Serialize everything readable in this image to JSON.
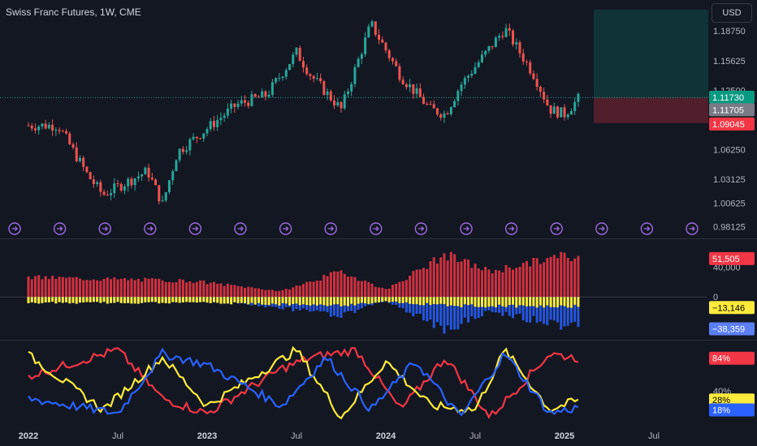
{
  "header": {
    "title": "Swiss Franc Futures, 1W, CME",
    "currency_button": "USD"
  },
  "colors": {
    "background": "#131722",
    "up": "#26a69a",
    "down": "#ef5350",
    "red": "#f23645",
    "yellow": "#ffeb3b",
    "blue": "#2962ff",
    "purple": "#9c6ade",
    "gridline": "#363a45"
  },
  "chart_data": [
    {
      "type": "candlestick",
      "title": "Swiss Franc Futures, 1W, CME",
      "x_tick_labels": [
        "2022",
        "Jul",
        "2023",
        "Jul",
        "2024",
        "Jul",
        "2025",
        "Jul"
      ],
      "y_tick_labels": [
        "1.18750",
        "1.15625",
        "1.12500",
        "1.06250",
        "1.03125",
        "1.00625",
        "0.98125"
      ],
      "ylim": [
        0.975,
        1.215
      ],
      "price_labels": {
        "last": "1.11730",
        "second": "1.11705",
        "stop": "1.09045"
      },
      "position_zone": {
        "entry": 1.1173,
        "target": 1.21,
        "stop": 1.09045
      },
      "key_closes": [
        {
          "date": "2022-01",
          "value": 1.088
        },
        {
          "date": "2022-03",
          "value": 1.088
        },
        {
          "date": "2022-05",
          "value": 1.035
        },
        {
          "date": "2022-06",
          "value": 1.015
        },
        {
          "date": "2022-09",
          "value": 1.04
        },
        {
          "date": "2022-10",
          "value": 1.005
        },
        {
          "date": "2022-11",
          "value": 1.06
        },
        {
          "date": "2023-01",
          "value": 1.085
        },
        {
          "date": "2023-03",
          "value": 1.11
        },
        {
          "date": "2023-05",
          "value": 1.12
        },
        {
          "date": "2023-07",
          "value": 1.165
        },
        {
          "date": "2023-08",
          "value": 1.14
        },
        {
          "date": "2023-10",
          "value": 1.105
        },
        {
          "date": "2023-12",
          "value": 1.195
        },
        {
          "date": "2024-02",
          "value": 1.14
        },
        {
          "date": "2024-04",
          "value": 1.105
        },
        {
          "date": "2024-05",
          "value": 1.1
        },
        {
          "date": "2024-06",
          "value": 1.13
        },
        {
          "date": "2024-08",
          "value": 1.17
        },
        {
          "date": "2024-09",
          "value": 1.19
        },
        {
          "date": "2024-11",
          "value": 1.14
        },
        {
          "date": "2024-12",
          "value": 1.105
        },
        {
          "date": "2025-01",
          "value": 1.1
        },
        {
          "date": "2025-02",
          "value": 1.1173
        }
      ],
      "event_marker_count": 16
    },
    {
      "type": "bar",
      "title": "",
      "y_tick_labels": [
        "40,000",
        "0"
      ],
      "ylim": [
        -52000,
        72000
      ],
      "value_labels": {
        "red": "51,505",
        "yellow": "−13,146",
        "blue": "−38,359"
      },
      "series": [
        {
          "color": "red",
          "key_values": [
            {
              "date": "2022-01",
              "value": 27000
            },
            {
              "date": "2022-12",
              "value": 22000
            },
            {
              "date": "2023-06",
              "value": 8000
            },
            {
              "date": "2023-10",
              "value": 35000
            },
            {
              "date": "2024-01",
              "value": 10000
            },
            {
              "date": "2024-05",
              "value": 58000
            },
            {
              "date": "2024-08",
              "value": 35000
            },
            {
              "date": "2025-01",
              "value": 57000
            },
            {
              "date": "2025-02",
              "value": 51505
            }
          ]
        },
        {
          "color": "yellow",
          "key_values": [
            {
              "date": "2022-01",
              "value": -8000
            },
            {
              "date": "2023-01",
              "value": -8000
            },
            {
              "date": "2023-10",
              "value": -12000
            },
            {
              "date": "2024-01",
              "value": -6000
            },
            {
              "date": "2024-05",
              "value": -12000
            },
            {
              "date": "2025-02",
              "value": -13146
            }
          ]
        },
        {
          "color": "blue",
          "key_values": [
            {
              "date": "2022-01",
              "value": -5000
            },
            {
              "date": "2023-01",
              "value": -3000
            },
            {
              "date": "2023-10",
              "value": -25000
            },
            {
              "date": "2024-01",
              "value": -5000
            },
            {
              "date": "2024-05",
              "value": -45000
            },
            {
              "date": "2024-08",
              "value": -20000
            },
            {
              "date": "2025-01",
              "value": -40000
            },
            {
              "date": "2025-02",
              "value": -38359
            }
          ]
        }
      ]
    },
    {
      "type": "line",
      "title": "",
      "y_tick_labels": [
        "40%"
      ],
      "ylim": [
        0,
        100
      ],
      "value_labels": {
        "red": "84%",
        "yellow": "28%",
        "blue": "18%"
      },
      "series": [
        {
          "color": "red",
          "key_values": [
            {
              "date": "2022-01",
              "value": 60
            },
            {
              "date": "2022-07",
              "value": 95
            },
            {
              "date": "2022-10",
              "value": 30
            },
            {
              "date": "2023-01",
              "value": 10
            },
            {
              "date": "2023-06",
              "value": 70
            },
            {
              "date": "2023-08",
              "value": 85
            },
            {
              "date": "2023-11",
              "value": 95
            },
            {
              "date": "2024-02",
              "value": 15
            },
            {
              "date": "2024-05",
              "value": 85
            },
            {
              "date": "2024-08",
              "value": 5
            },
            {
              "date": "2024-12",
              "value": 90
            },
            {
              "date": "2025-02",
              "value": 84
            }
          ]
        },
        {
          "color": "yellow",
          "key_values": [
            {
              "date": "2022-01",
              "value": 88
            },
            {
              "date": "2022-06",
              "value": 15
            },
            {
              "date": "2022-10",
              "value": 85
            },
            {
              "date": "2023-01",
              "value": 20
            },
            {
              "date": "2023-07",
              "value": 95
            },
            {
              "date": "2023-10",
              "value": 5
            },
            {
              "date": "2024-01",
              "value": 80
            },
            {
              "date": "2024-04",
              "value": 20
            },
            {
              "date": "2024-07",
              "value": 15
            },
            {
              "date": "2024-09",
              "value": 95
            },
            {
              "date": "2024-12",
              "value": 15
            },
            {
              "date": "2025-02",
              "value": 28
            }
          ]
        },
        {
          "color": "blue",
          "key_values": [
            {
              "date": "2022-01",
              "value": 30
            },
            {
              "date": "2022-07",
              "value": 10
            },
            {
              "date": "2022-10",
              "value": 90
            },
            {
              "date": "2023-01",
              "value": 75
            },
            {
              "date": "2023-06",
              "value": 20
            },
            {
              "date": "2023-09",
              "value": 85
            },
            {
              "date": "2023-12",
              "value": 15
            },
            {
              "date": "2024-03",
              "value": 80
            },
            {
              "date": "2024-06",
              "value": 5
            },
            {
              "date": "2024-09",
              "value": 90
            },
            {
              "date": "2024-12",
              "value": 10
            },
            {
              "date": "2025-02",
              "value": 18
            }
          ]
        }
      ]
    }
  ]
}
